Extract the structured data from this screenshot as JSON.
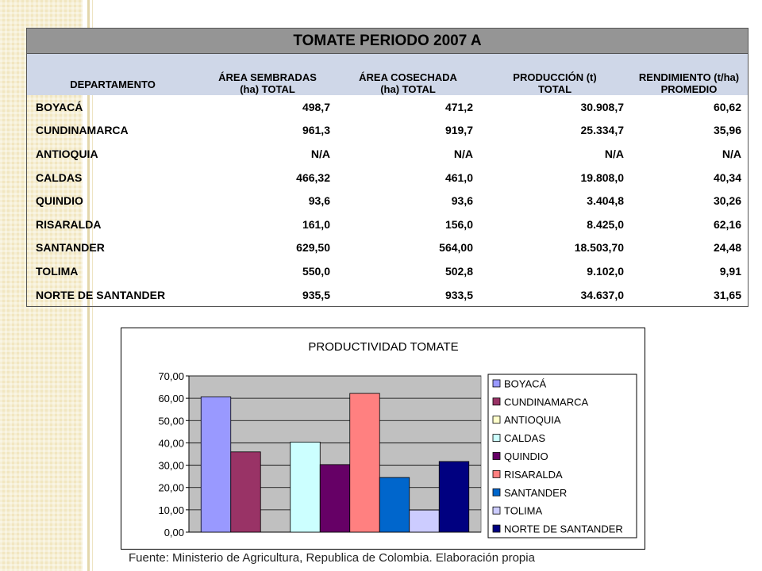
{
  "table": {
    "title": "TOMATE PERIODO 2007 A",
    "headers": {
      "departamento": "DEPARTAMENTO",
      "area_sembrada_1": "ÁREA SEMBRADAS",
      "area_sembrada_2": "(ha) TOTAL",
      "area_cosechada_1": "ÁREA COSECHADA",
      "area_cosechada_2": "(ha) TOTAL",
      "produccion_1": "PRODUCCIÓN (t)",
      "produccion_2": "TOTAL",
      "rendimiento_1": "RENDIMIENTO (t/ha)",
      "rendimiento_2": "PROMEDIO"
    },
    "rows": [
      {
        "dept": "BOYACÁ",
        "sembrada": "498,7",
        "cosechada": "471,2",
        "produccion": "30.908,7",
        "rendimiento": "60,62"
      },
      {
        "dept": "CUNDINAMARCA",
        "sembrada": "961,3",
        "cosechada": "919,7",
        "produccion": "25.334,7",
        "rendimiento": "35,96"
      },
      {
        "dept": "ANTIOQUIA",
        "sembrada": "N/A",
        "cosechada": "N/A",
        "produccion": "N/A",
        "rendimiento": "N/A"
      },
      {
        "dept": "CALDAS",
        "sembrada": "466,32",
        "cosechada": "461,0",
        "produccion": "19.808,0",
        "rendimiento": "40,34"
      },
      {
        "dept": "QUINDIO",
        "sembrada": "93,6",
        "cosechada": "93,6",
        "produccion": "3.404,8",
        "rendimiento": "30,26"
      },
      {
        "dept": "RISARALDA",
        "sembrada": "161,0",
        "cosechada": "156,0",
        "produccion": "8.425,0",
        "rendimiento": "62,16"
      },
      {
        "dept": "SANTANDER",
        "sembrada": "629,50",
        "cosechada": "564,00",
        "produccion": "18.503,70",
        "rendimiento": "24,48"
      },
      {
        "dept": "TOLIMA",
        "sembrada": "550,0",
        "cosechada": "502,8",
        "produccion": "9.102,0",
        "rendimiento": "9,91"
      },
      {
        "dept": "NORTE DE SANTANDER",
        "sembrada": "935,5",
        "cosechada": "933,5",
        "produccion": "34.637,0",
        "rendimiento": "31,65"
      }
    ]
  },
  "chart_data": {
    "type": "bar",
    "title": "PRODUCTIVIDAD TOMATE",
    "ylim": [
      0,
      70
    ],
    "yticks": [
      "0,00",
      "10,00",
      "20,00",
      "30,00",
      "40,00",
      "50,00",
      "60,00",
      "70,00"
    ],
    "ytick_values": [
      0,
      10,
      20,
      30,
      40,
      50,
      60,
      70
    ],
    "grid": true,
    "legend_position": "right",
    "series": [
      {
        "name": "BOYACÁ",
        "value": 60.62,
        "color": "#9999ff"
      },
      {
        "name": "CUNDINAMARCA",
        "value": 35.96,
        "color": "#993366"
      },
      {
        "name": "ANTIOQUIA",
        "value": null,
        "color": "#ffffcc"
      },
      {
        "name": "CALDAS",
        "value": 40.34,
        "color": "#ccffff"
      },
      {
        "name": "QUINDIO",
        "value": 30.26,
        "color": "#660066"
      },
      {
        "name": "RISARALDA",
        "value": 62.16,
        "color": "#ff8080"
      },
      {
        "name": "SANTANDER",
        "value": 24.48,
        "color": "#0066cc"
      },
      {
        "name": "TOLIMA",
        "value": 9.91,
        "color": "#ccccff"
      },
      {
        "name": "NORTE DE SANTANDER",
        "value": 31.65,
        "color": "#000080"
      }
    ],
    "plot_background": "#c0c0c0"
  },
  "source_note": "Fuente: Ministerio de Agricultura, Republica de Colombia. Elaboración propia"
}
